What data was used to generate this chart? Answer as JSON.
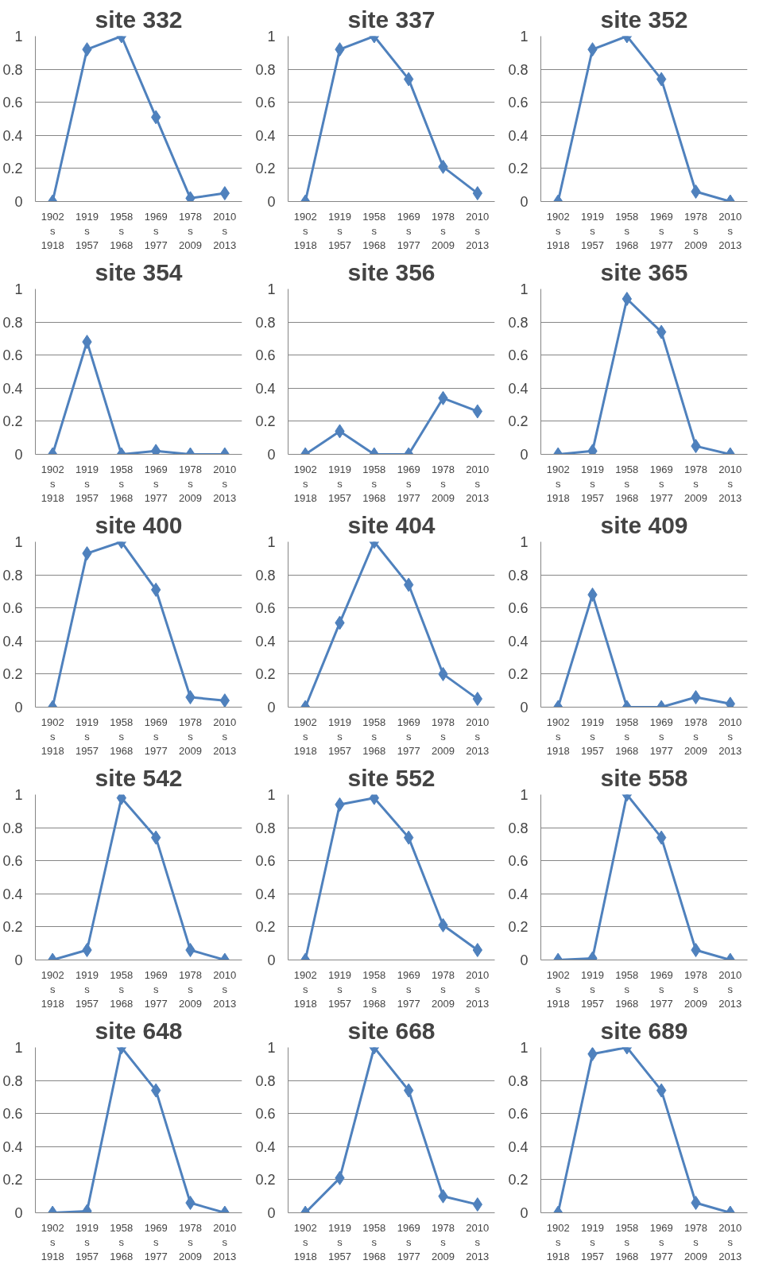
{
  "chart_data": [
    {
      "type": "line",
      "title": "site 332",
      "categories": [
        "1902\ns\n1918",
        "1919\ns\n1957",
        "1958\ns\n1968",
        "1969\ns\n1977",
        "1978\ns\n2009",
        "2010\ns\n2013"
      ],
      "series": [
        {
          "color": "#4f81bd",
          "values": [
            0,
            0.92,
            1,
            0.51,
            0.02,
            0.05
          ]
        }
      ],
      "ylim": [
        0,
        1
      ],
      "yticks": [
        0,
        0.2,
        0.4,
        0.6,
        0.8,
        1
      ],
      "grid": "y",
      "marker": "diamond"
    },
    {
      "type": "line",
      "title": "site 337",
      "categories": [
        "1902\ns\n1918",
        "1919\ns\n1957",
        "1958\ns\n1968",
        "1969\ns\n1977",
        "1978\ns\n2009",
        "2010\ns\n2013"
      ],
      "series": [
        {
          "color": "#4f81bd",
          "values": [
            0,
            0.92,
            1,
            0.74,
            0.21,
            0.05
          ]
        }
      ],
      "ylim": [
        0,
        1
      ],
      "yticks": [
        0,
        0.2,
        0.4,
        0.6,
        0.8,
        1
      ],
      "grid": "y",
      "marker": "diamond"
    },
    {
      "type": "line",
      "title": "site 352",
      "categories": [
        "1902\ns\n1918",
        "1919\ns\n1957",
        "1958\ns\n1968",
        "1969\ns\n1977",
        "1978\ns\n2009",
        "2010\ns\n2013"
      ],
      "series": [
        {
          "color": "#4f81bd",
          "values": [
            0,
            0.92,
            1,
            0.74,
            0.06,
            0
          ]
        }
      ],
      "ylim": [
        0,
        1
      ],
      "yticks": [
        0,
        0.2,
        0.4,
        0.6,
        0.8,
        1
      ],
      "grid": "y",
      "marker": "diamond"
    },
    {
      "type": "line",
      "title": "site 354",
      "categories": [
        "1902\ns\n1918",
        "1919\ns\n1957",
        "1958\ns\n1968",
        "1969\ns\n1977",
        "1978\ns\n2009",
        "2010\ns\n2013"
      ],
      "series": [
        {
          "color": "#4f81bd",
          "values": [
            0,
            0.68,
            0,
            0.02,
            0,
            0
          ]
        }
      ],
      "ylim": [
        0,
        1
      ],
      "yticks": [
        0,
        0.2,
        0.4,
        0.6,
        0.8,
        1
      ],
      "grid": "y",
      "marker": "diamond"
    },
    {
      "type": "line",
      "title": "site 356",
      "categories": [
        "1902\ns\n1918",
        "1919\ns\n1957",
        "1958\ns\n1968",
        "1969\ns\n1977",
        "1978\ns\n2009",
        "2010\ns\n2013"
      ],
      "series": [
        {
          "color": "#4f81bd",
          "values": [
            0,
            0.14,
            0,
            0,
            0.34,
            0.26
          ]
        }
      ],
      "ylim": [
        0,
        1
      ],
      "yticks": [
        0,
        0.2,
        0.4,
        0.6,
        0.8,
        1
      ],
      "grid": "y",
      "marker": "diamond"
    },
    {
      "type": "line",
      "title": "site 365",
      "categories": [
        "1902\ns\n1918",
        "1919\ns\n1957",
        "1958\ns\n1968",
        "1969\ns\n1977",
        "1978\ns\n2009",
        "2010\ns\n2013"
      ],
      "series": [
        {
          "color": "#4f81bd",
          "values": [
            0,
            0.02,
            0.94,
            0.74,
            0.05,
            0
          ]
        }
      ],
      "ylim": [
        0,
        1
      ],
      "yticks": [
        0,
        0.2,
        0.4,
        0.6,
        0.8,
        1
      ],
      "grid": "y",
      "marker": "diamond"
    },
    {
      "type": "line",
      "title": "site 400",
      "categories": [
        "1902\ns\n1918",
        "1919\ns\n1957",
        "1958\ns\n1968",
        "1969\ns\n1977",
        "1978\ns\n2009",
        "2010\ns\n2013"
      ],
      "series": [
        {
          "color": "#4f81bd",
          "values": [
            0,
            0.93,
            1,
            0.71,
            0.06,
            0.04
          ]
        }
      ],
      "ylim": [
        0,
        1
      ],
      "yticks": [
        0,
        0.2,
        0.4,
        0.6,
        0.8,
        1
      ],
      "grid": "y",
      "marker": "diamond"
    },
    {
      "type": "line",
      "title": "site 404",
      "categories": [
        "1902\ns\n1918",
        "1919\ns\n1957",
        "1958\ns\n1968",
        "1969\ns\n1977",
        "1978\ns\n2009",
        "2010\ns\n2013"
      ],
      "series": [
        {
          "color": "#4f81bd",
          "values": [
            0,
            0.51,
            1,
            0.74,
            0.2,
            0.05
          ]
        }
      ],
      "ylim": [
        0,
        1
      ],
      "yticks": [
        0,
        0.2,
        0.4,
        0.6,
        0.8,
        1
      ],
      "grid": "y",
      "marker": "diamond"
    },
    {
      "type": "line",
      "title": "site 409",
      "categories": [
        "1902\ns\n1918",
        "1919\ns\n1957",
        "1958\ns\n1968",
        "1969\ns\n1977",
        "1978\ns\n2009",
        "2010\ns\n2013"
      ],
      "series": [
        {
          "color": "#4f81bd",
          "values": [
            0,
            0.68,
            0,
            0,
            0.06,
            0.02
          ]
        }
      ],
      "ylim": [
        0,
        1
      ],
      "yticks": [
        0,
        0.2,
        0.4,
        0.6,
        0.8,
        1
      ],
      "grid": "y",
      "marker": "diamond"
    },
    {
      "type": "line",
      "title": "site 542",
      "categories": [
        "1902\ns\n1918",
        "1919\ns\n1957",
        "1958\ns\n1968",
        "1969\ns\n1977",
        "1978\ns\n2009",
        "2010\ns\n2013"
      ],
      "series": [
        {
          "color": "#4f81bd",
          "values": [
            0,
            0.06,
            0.98,
            0.74,
            0.06,
            0
          ]
        }
      ],
      "ylim": [
        0,
        1
      ],
      "yticks": [
        0,
        0.2,
        0.4,
        0.6,
        0.8,
        1
      ],
      "grid": "y",
      "marker": "diamond"
    },
    {
      "type": "line",
      "title": "site 552",
      "categories": [
        "1902\ns\n1918",
        "1919\ns\n1957",
        "1958\ns\n1968",
        "1969\ns\n1977",
        "1978\ns\n2009",
        "2010\ns\n2013"
      ],
      "series": [
        {
          "color": "#4f81bd",
          "values": [
            0,
            0.94,
            0.98,
            0.74,
            0.21,
            0.06
          ]
        }
      ],
      "ylim": [
        0,
        1
      ],
      "yticks": [
        0,
        0.2,
        0.4,
        0.6,
        0.8,
        1
      ],
      "grid": "y",
      "marker": "diamond"
    },
    {
      "type": "line",
      "title": "site 558",
      "categories": [
        "1902\ns\n1918",
        "1919\ns\n1957",
        "1958\ns\n1968",
        "1969\ns\n1977",
        "1978\ns\n2009",
        "2010\ns\n2013"
      ],
      "series": [
        {
          "color": "#4f81bd",
          "values": [
            0,
            0.01,
            1,
            0.74,
            0.06,
            0
          ]
        }
      ],
      "ylim": [
        0,
        1
      ],
      "yticks": [
        0,
        0.2,
        0.4,
        0.6,
        0.8,
        1
      ],
      "grid": "y",
      "marker": "diamond"
    },
    {
      "type": "line",
      "title": "site 648",
      "categories": [
        "1902\ns\n1918",
        "1919\ns\n1957",
        "1958\ns\n1968",
        "1969\ns\n1977",
        "1978\ns\n2009",
        "2010\ns\n2013"
      ],
      "series": [
        {
          "color": "#4f81bd",
          "values": [
            0,
            0.01,
            1,
            0.74,
            0.06,
            0
          ]
        }
      ],
      "ylim": [
        0,
        1
      ],
      "yticks": [
        0,
        0.2,
        0.4,
        0.6,
        0.8,
        1
      ],
      "grid": "y",
      "marker": "diamond"
    },
    {
      "type": "line",
      "title": "site 668",
      "categories": [
        "1902\ns\n1918",
        "1919\ns\n1957",
        "1958\ns\n1968",
        "1969\ns\n1977",
        "1978\ns\n2009",
        "2010\ns\n2013"
      ],
      "series": [
        {
          "color": "#4f81bd",
          "values": [
            0,
            0.21,
            1,
            0.74,
            0.1,
            0.05
          ]
        }
      ],
      "ylim": [
        0,
        1
      ],
      "yticks": [
        0,
        0.2,
        0.4,
        0.6,
        0.8,
        1
      ],
      "grid": "y",
      "marker": "diamond"
    },
    {
      "type": "line",
      "title": "site 689",
      "categories": [
        "1902\ns\n1918",
        "1919\ns\n1957",
        "1958\ns\n1968",
        "1969\ns\n1977",
        "1978\ns\n2009",
        "2010\ns\n2013"
      ],
      "series": [
        {
          "color": "#4f81bd",
          "values": [
            0,
            0.96,
            1,
            0.74,
            0.06,
            0
          ]
        }
      ],
      "ylim": [
        0,
        1
      ],
      "yticks": [
        0,
        0.2,
        0.4,
        0.6,
        0.8,
        1
      ],
      "grid": "y",
      "marker": "diamond"
    }
  ]
}
